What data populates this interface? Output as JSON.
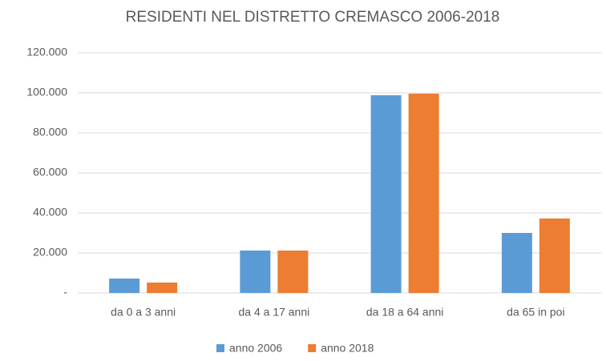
{
  "chart_data": {
    "type": "bar",
    "title": "RESIDENTI NEL DISTRETTO CREMASCO 2006-2018",
    "categories": [
      "da 0 a 3 anni",
      "da 4 a 17 anni",
      "da 18 a 64 anni",
      "da 65 in poi"
    ],
    "series": [
      {
        "name": "anno 2006",
        "color": "#5b9bd5",
        "values": [
          7200,
          21200,
          98800,
          30000
        ]
      },
      {
        "name": "anno 2018",
        "color": "#ed7d31",
        "values": [
          5200,
          21200,
          99600,
          37200
        ]
      }
    ],
    "ylim": [
      0,
      120000
    ],
    "yticks": [
      {
        "value": 0,
        "label": "-"
      },
      {
        "value": 20000,
        "label": "20.000"
      },
      {
        "value": 40000,
        "label": "40.000"
      },
      {
        "value": 60000,
        "label": "60.000"
      },
      {
        "value": 80000,
        "label": "80.000"
      },
      {
        "value": 100000,
        "label": "100.000"
      },
      {
        "value": 120000,
        "label": "120.000"
      }
    ],
    "grid": true,
    "legend": "bottom"
  }
}
